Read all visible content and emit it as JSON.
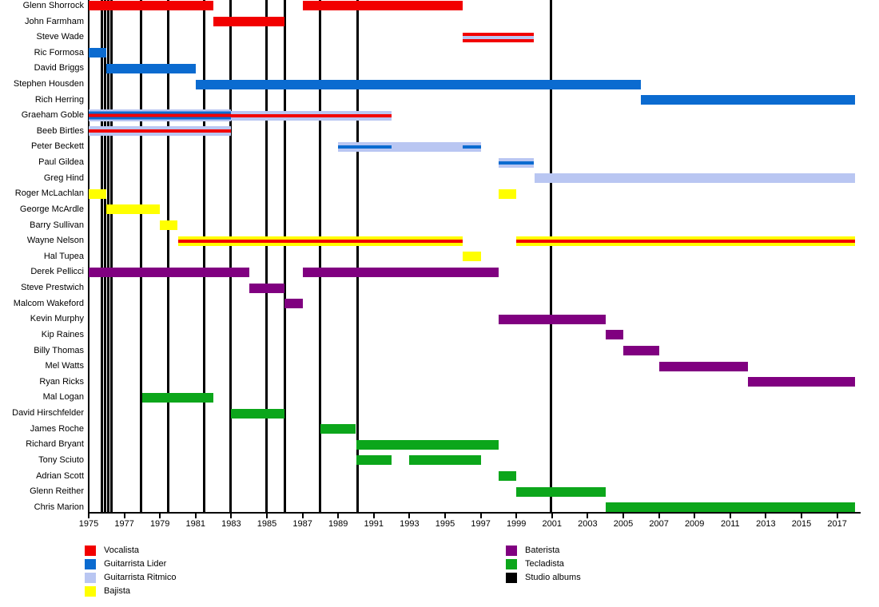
{
  "chart_data": {
    "type": "timeline",
    "title": "",
    "x_axis": {
      "start": 1975,
      "end": 2018,
      "tick_years": [
        1975,
        1977,
        1979,
        1981,
        1983,
        1985,
        1987,
        1989,
        1991,
        1993,
        1995,
        1997,
        1999,
        2001,
        2003,
        2005,
        2007,
        2009,
        2011,
        2013,
        2015,
        2017
      ]
    },
    "roles": [
      {
        "key": "vocal",
        "label": "Vocalista",
        "color": "#f20000"
      },
      {
        "key": "lead",
        "label": "Guitarrista Lider",
        "color": "#0b6bd0"
      },
      {
        "key": "rhythm",
        "label": "Guitarrista Ritmico",
        "color": "#b9c6f2"
      },
      {
        "key": "bass",
        "label": "Bajista",
        "color": "#ffff00"
      },
      {
        "key": "drums",
        "label": "Baterista",
        "color": "#800080"
      },
      {
        "key": "keys",
        "label": "Tecladista",
        "color": "#0ca61b"
      },
      {
        "key": "albums",
        "label": "Studio albums",
        "color": "#000000"
      }
    ],
    "album_years": [
      1975.72,
      1975.9,
      1976.08,
      1976.26,
      1977.92,
      1979.44,
      1981.46,
      1982.94,
      1984.96,
      1985.99,
      1987.96,
      1990.07,
      2000.96
    ],
    "members": [
      {
        "name": "Glenn Shorrock",
        "bars": [
          {
            "from": 1975,
            "to": 1982,
            "stripes": [
              "vocal"
            ]
          },
          {
            "from": 1987,
            "to": 1996,
            "stripes": [
              "vocal"
            ]
          }
        ]
      },
      {
        "name": "John Farmham",
        "bars": [
          {
            "from": 1982,
            "to": 1986,
            "stripes": [
              "vocal"
            ]
          }
        ]
      },
      {
        "name": "Steve Wade",
        "bars": [
          {
            "from": 1996,
            "to": 2000,
            "stripes": [
              "vocal",
              "rhythm",
              "vocal"
            ]
          }
        ]
      },
      {
        "name": "Ric Formosa",
        "bars": [
          {
            "from": 1975,
            "to": 1976,
            "stripes": [
              "lead"
            ]
          }
        ]
      },
      {
        "name": "David Briggs",
        "bars": [
          {
            "from": 1976,
            "to": 1981,
            "stripes": [
              "lead"
            ]
          }
        ]
      },
      {
        "name": "Stephen Housden",
        "bars": [
          {
            "from": 1981,
            "to": 2006,
            "stripes": [
              "lead"
            ]
          }
        ]
      },
      {
        "name": "Rich Herring",
        "bars": [
          {
            "from": 2006,
            "to": 2018,
            "stripes": [
              "lead"
            ]
          }
        ]
      },
      {
        "name": "Graeham Goble",
        "bars": [
          {
            "from": 1975,
            "to": 1983,
            "stripes": [
              "rhythm",
              "lead",
              "vocal",
              "lead",
              "rhythm"
            ]
          },
          {
            "from": 1983,
            "to": 1992,
            "stripes": [
              "rhythm",
              "vocal",
              "rhythm"
            ]
          }
        ]
      },
      {
        "name": "Beeb Birtles",
        "bars": [
          {
            "from": 1975,
            "to": 1983,
            "stripes": [
              "rhythm",
              "vocal",
              "rhythm"
            ]
          }
        ]
      },
      {
        "name": "Peter Beckett",
        "bars": [
          {
            "from": 1989,
            "to": 1992,
            "stripes": [
              "rhythm",
              "lead",
              "rhythm"
            ]
          },
          {
            "from": 1992,
            "to": 1996,
            "stripes": [
              "rhythm"
            ]
          },
          {
            "from": 1996,
            "to": 1997,
            "stripes": [
              "rhythm",
              "lead",
              "rhythm"
            ]
          }
        ]
      },
      {
        "name": "Paul Gildea",
        "bars": [
          {
            "from": 1998,
            "to": 2000,
            "stripes": [
              "rhythm",
              "lead",
              "rhythm"
            ]
          }
        ]
      },
      {
        "name": "Greg Hind",
        "bars": [
          {
            "from": 2000,
            "to": 2018,
            "stripes": [
              "rhythm"
            ]
          }
        ]
      },
      {
        "name": "Roger McLachlan",
        "bars": [
          {
            "from": 1975,
            "to": 1976,
            "stripes": [
              "bass"
            ]
          },
          {
            "from": 1998,
            "to": 1999,
            "stripes": [
              "bass"
            ]
          }
        ]
      },
      {
        "name": "George McArdle",
        "bars": [
          {
            "from": 1976,
            "to": 1979,
            "stripes": [
              "bass"
            ]
          }
        ]
      },
      {
        "name": "Barry Sullivan",
        "bars": [
          {
            "from": 1979,
            "to": 1980,
            "stripes": [
              "bass"
            ]
          }
        ]
      },
      {
        "name": "Wayne Nelson",
        "bars": [
          {
            "from": 1980,
            "to": 1996,
            "stripes": [
              "bass",
              "vocal",
              "bass"
            ]
          },
          {
            "from": 1999,
            "to": 2018,
            "stripes": [
              "bass",
              "vocal",
              "bass"
            ]
          }
        ]
      },
      {
        "name": "Hal Tupea",
        "bars": [
          {
            "from": 1996,
            "to": 1997,
            "stripes": [
              "bass"
            ]
          }
        ]
      },
      {
        "name": "Derek Pellicci",
        "bars": [
          {
            "from": 1975,
            "to": 1984,
            "stripes": [
              "drums"
            ]
          },
          {
            "from": 1987,
            "to": 1998,
            "stripes": [
              "drums"
            ]
          }
        ]
      },
      {
        "name": "Steve Prestwich",
        "bars": [
          {
            "from": 1984,
            "to": 1986,
            "stripes": [
              "drums"
            ]
          }
        ]
      },
      {
        "name": "Malcom Wakeford",
        "bars": [
          {
            "from": 1986,
            "to": 1987,
            "stripes": [
              "drums"
            ]
          }
        ]
      },
      {
        "name": "Kevin Murphy",
        "bars": [
          {
            "from": 1998,
            "to": 2004,
            "stripes": [
              "drums"
            ]
          }
        ]
      },
      {
        "name": "Kip Raines",
        "bars": [
          {
            "from": 2004,
            "to": 2005,
            "stripes": [
              "drums"
            ]
          }
        ]
      },
      {
        "name": "Billy Thomas",
        "bars": [
          {
            "from": 2005,
            "to": 2007,
            "stripes": [
              "drums"
            ]
          }
        ]
      },
      {
        "name": "Mel Watts",
        "bars": [
          {
            "from": 2007,
            "to": 2012,
            "stripes": [
              "drums"
            ]
          }
        ]
      },
      {
        "name": "Ryan Ricks",
        "bars": [
          {
            "from": 2012,
            "to": 2018,
            "stripes": [
              "drums"
            ]
          }
        ]
      },
      {
        "name": "Mal Logan",
        "bars": [
          {
            "from": 1978,
            "to": 1982,
            "stripes": [
              "keys"
            ]
          }
        ]
      },
      {
        "name": "David Hirschfelder",
        "bars": [
          {
            "from": 1983,
            "to": 1986,
            "stripes": [
              "keys"
            ]
          }
        ]
      },
      {
        "name": "James Roche",
        "bars": [
          {
            "from": 1988,
            "to": 1990,
            "stripes": [
              "keys"
            ]
          }
        ]
      },
      {
        "name": "Richard Bryant",
        "bars": [
          {
            "from": 1990,
            "to": 1998,
            "stripes": [
              "keys"
            ]
          }
        ]
      },
      {
        "name": "Tony Sciuto",
        "bars": [
          {
            "from": 1990,
            "to": 1992,
            "stripes": [
              "keys"
            ]
          },
          {
            "from": 1993,
            "to": 1997,
            "stripes": [
              "keys"
            ]
          }
        ]
      },
      {
        "name": "Adrian Scott",
        "bars": [
          {
            "from": 1998,
            "to": 1999,
            "stripes": [
              "keys"
            ]
          }
        ]
      },
      {
        "name": "Glenn Reither",
        "bars": [
          {
            "from": 1999,
            "to": 2004,
            "stripes": [
              "keys"
            ]
          }
        ]
      },
      {
        "name": "Chris Marion",
        "bars": [
          {
            "from": 2004,
            "to": 2018,
            "stripes": [
              "keys"
            ]
          }
        ]
      }
    ],
    "legend": {
      "left_column": [
        "Vocalista",
        "Guitarrista Lider",
        "Guitarrista Ritmico",
        "Bajista"
      ],
      "right_column": [
        "Baterista",
        "Tecladista",
        "Studio albums"
      ],
      "position": "bottom"
    }
  }
}
